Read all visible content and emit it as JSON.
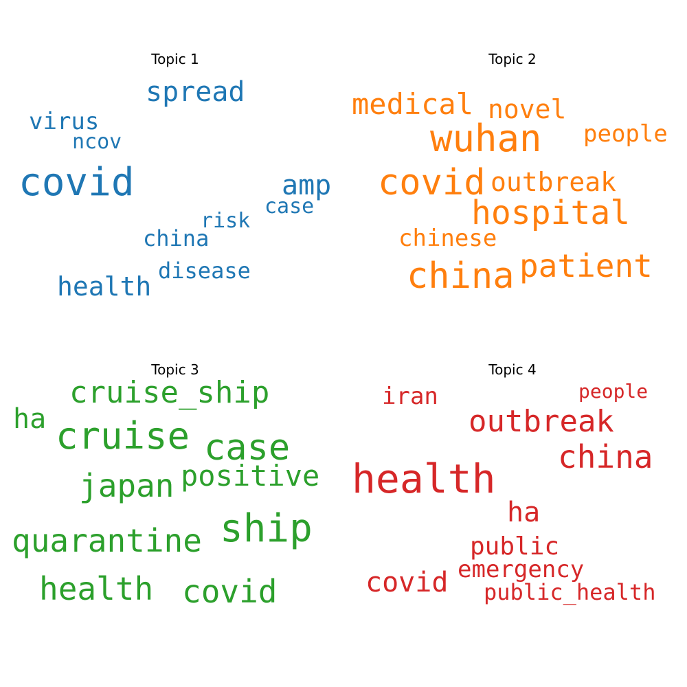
{
  "colors": {
    "topic1": "#1f77b4",
    "topic2": "#ff7f0e",
    "topic3": "#2ca02c",
    "topic4": "#d62728"
  },
  "topics": [
    {
      "title": "Topic 1",
      "words": [
        "covid",
        "spread",
        "virus",
        "ncov",
        "amp",
        "case",
        "risk",
        "china",
        "disease",
        "health"
      ]
    },
    {
      "title": "Topic 2",
      "words": [
        "medical",
        "novel",
        "wuhan",
        "people",
        "covid",
        "outbreak",
        "hospital",
        "chinese",
        "china",
        "patient"
      ]
    },
    {
      "title": "Topic 3",
      "words": [
        "cruise_ship",
        "ha",
        "cruise",
        "case",
        "japan",
        "positive",
        "ship",
        "quarantine",
        "health",
        "covid"
      ]
    },
    {
      "title": "Topic 4",
      "words": [
        "iran",
        "people",
        "outbreak",
        "china",
        "health",
        "ha",
        "public",
        "emergency",
        "covid",
        "public_health"
      ]
    }
  ]
}
